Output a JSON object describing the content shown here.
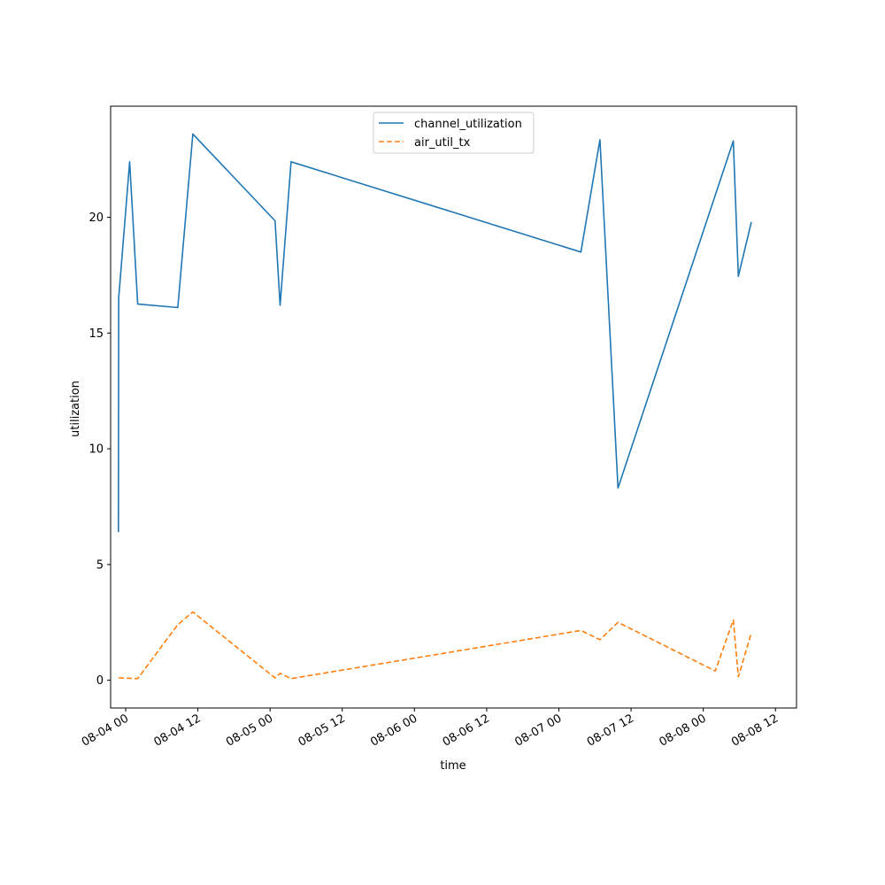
{
  "chart_data": {
    "type": "line",
    "title": "",
    "xlabel": "time",
    "ylabel": "utilization",
    "xlim": [
      "2024-08-03 21:30",
      "2024-08-08 15:30"
    ],
    "ylim": [
      -1.2,
      24.8
    ],
    "grid": false,
    "legend_position": "top-center",
    "x_ticks": [
      {
        "value": "2024-08-04 00:00",
        "label": "08-04 00"
      },
      {
        "value": "2024-08-04 12:00",
        "label": "08-04 12"
      },
      {
        "value": "2024-08-05 00:00",
        "label": "08-05 00"
      },
      {
        "value": "2024-08-05 12:00",
        "label": "08-05 12"
      },
      {
        "value": "2024-08-06 00:00",
        "label": "08-06 00"
      },
      {
        "value": "2024-08-06 12:00",
        "label": "08-06 12"
      },
      {
        "value": "2024-08-07 00:00",
        "label": "08-07 00"
      },
      {
        "value": "2024-08-07 12:00",
        "label": "08-07 12"
      },
      {
        "value": "2024-08-08 00:00",
        "label": "08-08 00"
      },
      {
        "value": "2024-08-08 12:00",
        "label": "08-08 12"
      }
    ],
    "y_ticks": [
      {
        "value": 0,
        "label": "0"
      },
      {
        "value": 5,
        "label": "5"
      },
      {
        "value": 10,
        "label": "10"
      },
      {
        "value": 15,
        "label": "15"
      },
      {
        "value": 20,
        "label": "20"
      }
    ],
    "series": [
      {
        "name": "channel_utilization",
        "color": "#1f77b4",
        "style": "solid",
        "points": [
          {
            "x": "2024-08-03 22:48",
            "y": 6.4
          },
          {
            "x": "2024-08-03 22:50",
            "y": 16.5
          },
          {
            "x": "2024-08-04 00:40",
            "y": 22.4
          },
          {
            "x": "2024-08-04 02:00",
            "y": 16.25
          },
          {
            "x": "2024-08-04 08:40",
            "y": 16.1
          },
          {
            "x": "2024-08-04 11:10",
            "y": 23.6
          },
          {
            "x": "2024-08-05 00:50",
            "y": 19.85
          },
          {
            "x": "2024-08-05 01:40",
            "y": 16.2
          },
          {
            "x": "2024-08-05 03:30",
            "y": 22.4
          },
          {
            "x": "2024-08-07 03:40",
            "y": 18.5
          },
          {
            "x": "2024-08-07 06:50",
            "y": 23.35
          },
          {
            "x": "2024-08-07 09:50",
            "y": 8.3
          },
          {
            "x": "2024-08-08 05:00",
            "y": 23.3
          },
          {
            "x": "2024-08-08 05:50",
            "y": 17.45
          },
          {
            "x": "2024-08-08 08:00",
            "y": 19.8
          }
        ]
      },
      {
        "name": "air_util_tx",
        "color": "#ff7f0e",
        "style": "dashed",
        "points": [
          {
            "x": "2024-08-03 22:50",
            "y": 0.1
          },
          {
            "x": "2024-08-04 02:00",
            "y": 0.07
          },
          {
            "x": "2024-08-04 08:40",
            "y": 2.4
          },
          {
            "x": "2024-08-04 11:10",
            "y": 2.95
          },
          {
            "x": "2024-08-05 00:50",
            "y": 0.1
          },
          {
            "x": "2024-08-05 01:40",
            "y": 0.3
          },
          {
            "x": "2024-08-05 03:30",
            "y": 0.07
          },
          {
            "x": "2024-08-07 03:40",
            "y": 2.15
          },
          {
            "x": "2024-08-07 06:50",
            "y": 1.75
          },
          {
            "x": "2024-08-07 09:50",
            "y": 2.5
          },
          {
            "x": "2024-08-08 02:00",
            "y": 0.4
          },
          {
            "x": "2024-08-08 05:00",
            "y": 2.6
          },
          {
            "x": "2024-08-08 05:50",
            "y": 0.15
          },
          {
            "x": "2024-08-08 08:00",
            "y": 2.05
          }
        ]
      }
    ]
  }
}
